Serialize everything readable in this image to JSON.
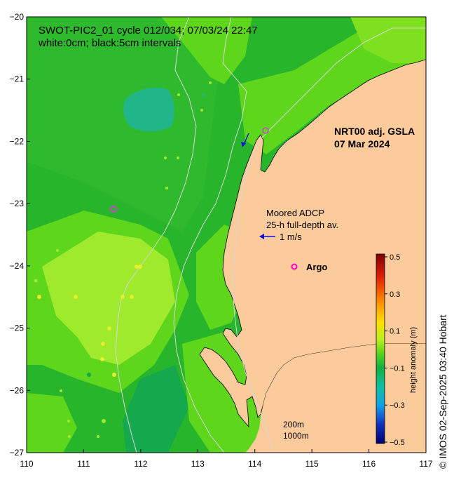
{
  "title": {
    "line1": "SWOT-PIC2_01 cycle 012/034; 07/03/24 22:47",
    "line2": "white:0cm; black:5cm intervals"
  },
  "product": {
    "line1": "NRT00 adj. GSLA",
    "line2": "07 Mar 2024"
  },
  "adcp": {
    "line1": "Moored ADCP",
    "line2": "25-h full-depth av.",
    "scale_label": "1 m/s"
  },
  "argo_label": "Argo",
  "bathymetry": {
    "contour1": "200m",
    "contour2": "1000m"
  },
  "colorbar": {
    "label": "height anomaly (m)",
    "ticks": [
      "0.5",
      "0.3",
      "0.1",
      "−0.1",
      "−0.3",
      "−0.5"
    ],
    "min": -0.5,
    "max": 0.5
  },
  "axes": {
    "x_ticks": [
      "110",
      "111",
      "112",
      "113",
      "114",
      "115",
      "116",
      "117"
    ],
    "y_ticks": [
      "−20",
      "−21",
      "−22",
      "−23",
      "−24",
      "−25",
      "−26",
      "−27"
    ],
    "lon_range": [
      110,
      117
    ],
    "lat_range": [
      -27,
      -20
    ]
  },
  "credit": "© IMOS 02-Sep-2025 03:40 Hobart",
  "colors": {
    "land": "#fccb9c",
    "sea_base": "#27b52c",
    "sea_light": "#5ed61c",
    "sea_bright": "#9fea2c",
    "sea_dark": "#15a84c",
    "sea_cyan": "#21b68a",
    "argo": "#ff00cc",
    "adcp_arrow": "#1010dd"
  }
}
